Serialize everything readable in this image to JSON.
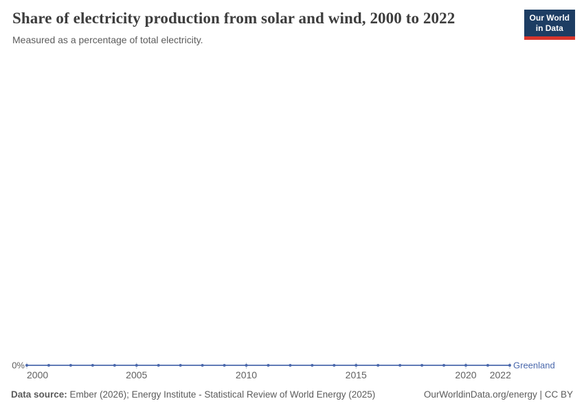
{
  "header": {
    "title": "Share of electricity production from solar and wind, 2000 to 2022",
    "subtitle": "Measured as a percentage of total electricity.",
    "logo": {
      "line1": "Our World",
      "line2": "in Data"
    }
  },
  "footer": {
    "source_label": "Data source:",
    "source_text": " Ember (2026); Energy Institute - Statistical Review of World Energy (2025)",
    "credit": "OurWorldinData.org/energy | CC BY"
  },
  "colors": {
    "line": "#4a68ac",
    "axis_text": "#606060",
    "tick_mark": "#c4cbd4",
    "logo_background": "#1d3d63",
    "logo_underline": "#d8352c"
  },
  "chart_data": {
    "type": "line",
    "title": "Share of electricity production from solar and wind, 2000 to 2022",
    "subtitle": "Measured as a percentage of total electricity.",
    "xlabel": "",
    "ylabel": "",
    "x": [
      2000,
      2001,
      2002,
      2003,
      2004,
      2005,
      2006,
      2007,
      2008,
      2009,
      2010,
      2011,
      2012,
      2013,
      2014,
      2015,
      2016,
      2017,
      2018,
      2019,
      2020,
      2021,
      2022
    ],
    "series": [
      {
        "name": "Greenland",
        "color": "#4a68ac",
        "values": [
          0,
          0,
          0,
          0,
          0,
          0,
          0,
          0,
          0,
          0,
          0,
          0,
          0,
          0,
          0,
          0,
          0,
          0,
          0,
          0,
          0,
          0,
          0
        ]
      }
    ],
    "x_ticks": [
      2000,
      2005,
      2010,
      2015,
      2020,
      2022
    ],
    "y_tick_label": "0%",
    "xlim": [
      2000,
      2022
    ],
    "ylim": [
      0,
      0
    ],
    "grid": false,
    "legend_position": "end-of-line"
  }
}
